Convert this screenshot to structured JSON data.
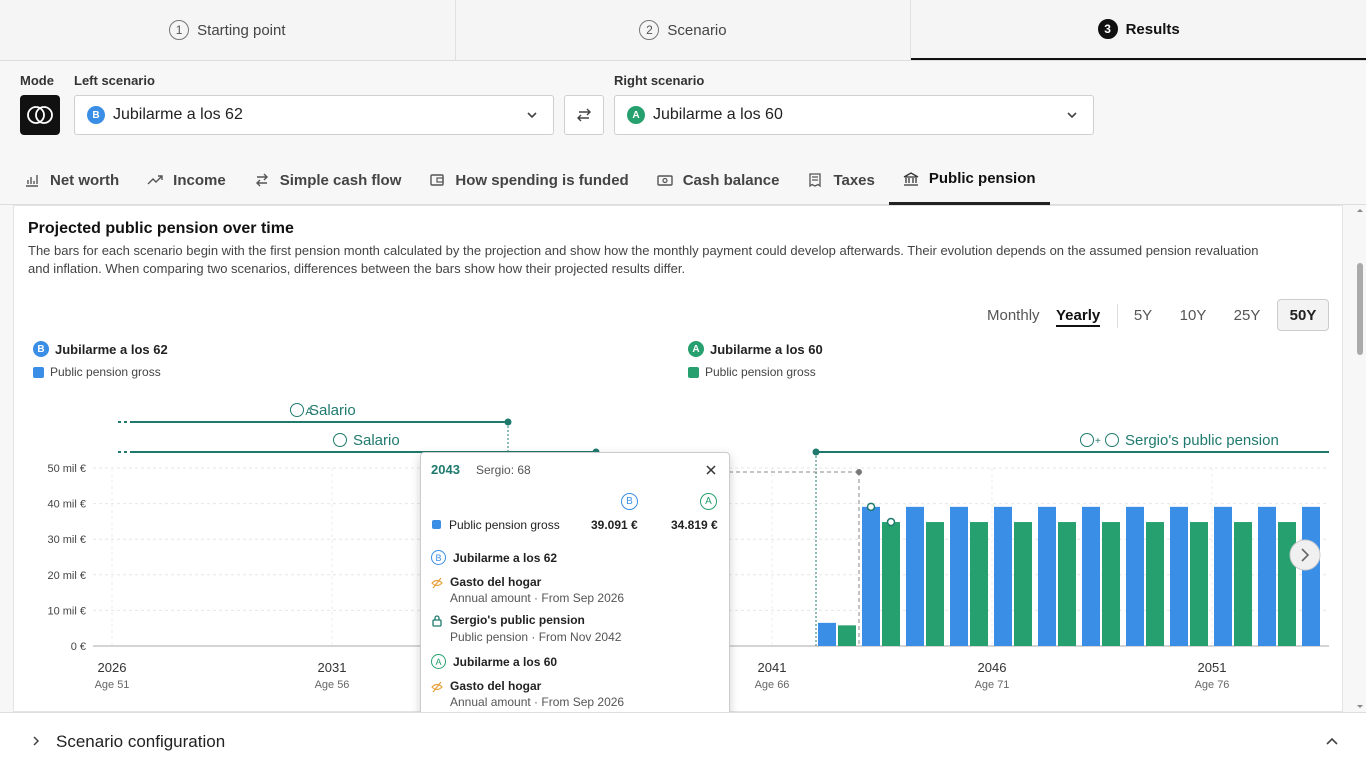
{
  "steps": [
    {
      "num": "1",
      "label": "Starting point"
    },
    {
      "num": "2",
      "label": "Scenario"
    },
    {
      "num": "3",
      "label": "Results"
    }
  ],
  "controls": {
    "mode_label": "Mode",
    "left_label": "Left scenario",
    "right_label": "Right scenario",
    "left_value": "Jubilarme a los 62",
    "left_badge": "B",
    "right_value": "Jubilarme a los 60",
    "right_badge": "A"
  },
  "tabs": [
    "Net worth",
    "Income",
    "Simple cash flow",
    "How spending is funded",
    "Cash balance",
    "Taxes",
    "Public pension"
  ],
  "card": {
    "title": "Projected public pension over time",
    "description": "The bars for each scenario begin with the first pension month calculated by the projection and show how the monthly payment could develop afterwards. Their evolution depends on the assumed pension revaluation and inflation. When comparing two scenarios, differences between the bars show how their projected results differ.",
    "toggle_monthly": "Monthly",
    "toggle_yearly": "Yearly",
    "periods": [
      "5Y",
      "10Y",
      "25Y",
      "50Y"
    ]
  },
  "legend": {
    "left_title": "Jubilarme a los 62",
    "left_badge": "B",
    "left_item": "Public pension gross",
    "right_title": "Jubilarme a los 60",
    "right_badge": "A",
    "right_item": "Public pension gross"
  },
  "timeline": {
    "a_salary": "Salario",
    "b_salary": "Salario",
    "pension": "Sergio's public pension",
    "badge_a": "A",
    "badge_b": "B",
    "badge_plus": "+"
  },
  "chart_data": {
    "type": "bar",
    "ylim": [
      0,
      50000
    ],
    "y_ticks": [
      "0 €",
      "10 mil €",
      "20 mil €",
      "30 mil €",
      "40 mil €",
      "50 mil €"
    ],
    "x_ticks": [
      {
        "year": "2026",
        "age": "Age 51"
      },
      {
        "year": "2031",
        "age": "Age 56"
      },
      {
        "year": "2041",
        "age": "Age 66"
      },
      {
        "year": "2046",
        "age": "Age 71"
      },
      {
        "year": "2051",
        "age": "Age 76"
      }
    ],
    "categories": [
      "2042",
      "2043",
      "2044",
      "2045",
      "2046",
      "2047",
      "2048",
      "2049",
      "2050",
      "2051",
      "2052",
      "2053",
      "2054"
    ],
    "series": [
      {
        "name": "Jubilarme a los 62",
        "color": "#3a8ee6",
        "values": [
          6500,
          39091,
          39091,
          39091,
          39091,
          39091,
          39091,
          39091,
          39091,
          39091,
          39091,
          39091,
          39091
        ]
      },
      {
        "name": "Jubilarme a los 60",
        "color": "#26a06e",
        "values": [
          5800,
          34819,
          34819,
          34819,
          34819,
          34819,
          34819,
          34819,
          34819,
          34819,
          34819,
          34819,
          34819
        ]
      }
    ]
  },
  "tooltip": {
    "year": "2043",
    "person": "Sergio: 68",
    "badge_b": "B",
    "badge_a": "A",
    "row_label": "Public pension gross",
    "value_b": "39.091 €",
    "value_a": "34.819 €",
    "b_title": "Jubilarme a los 62",
    "a_title": "Jubilarme a los 60",
    "items": [
      {
        "name": "Gasto del hogar",
        "detail": "Annual amount · From Sep 2026"
      },
      {
        "name": "Sergio's public pension",
        "detail": "Public pension · From Nov 2042"
      }
    ]
  },
  "config": {
    "label": "Scenario configuration"
  }
}
